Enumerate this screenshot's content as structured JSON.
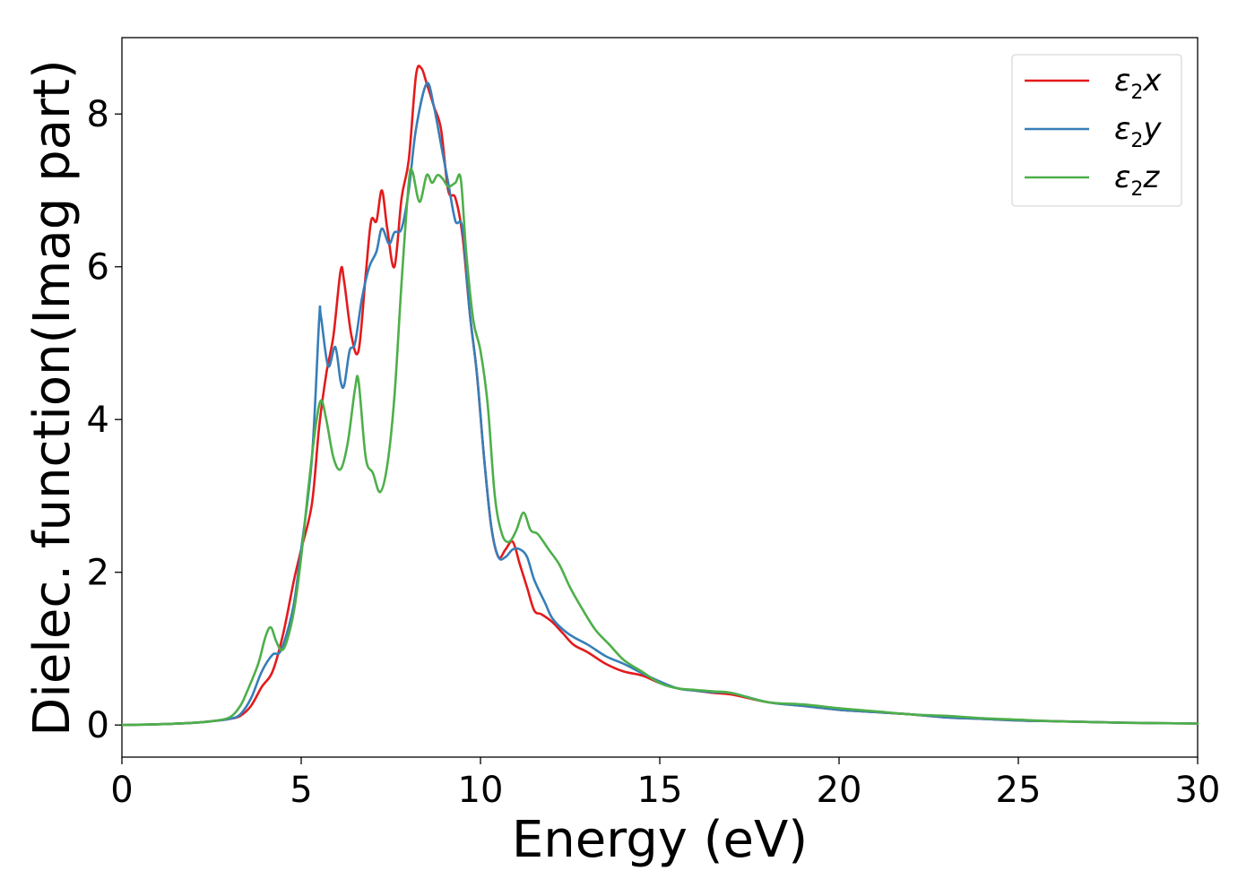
{
  "chart_data": {
    "type": "line",
    "xlabel": "Energy (eV)",
    "ylabel": "Dielec. function(Imag part)",
    "xlim": [
      0,
      30
    ],
    "ylim": [
      -0.42,
      9.0
    ],
    "xticks": [
      0,
      5,
      10,
      15,
      20,
      25,
      30
    ],
    "yticks": [
      0,
      2,
      4,
      6,
      8
    ],
    "grid": false,
    "legend_position": "top-right",
    "series": [
      {
        "name": "ε2x",
        "symbol": "ε",
        "subscript": "2",
        "axis": "x",
        "color": "#e41a1c",
        "x": [
          0,
          1,
          2,
          2.5,
          3,
          3.3,
          3.6,
          3.9,
          4.2,
          4.5,
          4.8,
          5.0,
          5.3,
          5.5,
          5.7,
          5.9,
          6.1,
          6.2,
          6.4,
          6.6,
          6.8,
          6.95,
          7.1,
          7.25,
          7.4,
          7.6,
          7.8,
          8.0,
          8.2,
          8.35,
          8.5,
          8.7,
          8.9,
          9.1,
          9.3,
          9.5,
          9.7,
          9.9,
          10.1,
          10.3,
          10.5,
          10.7,
          10.9,
          11.1,
          11.3,
          11.5,
          11.7,
          12.0,
          12.3,
          12.6,
          13.0,
          13.5,
          14.0,
          14.5,
          15.0,
          15.5,
          16,
          16.5,
          17,
          18,
          19,
          20,
          21,
          22,
          23,
          24,
          25,
          26,
          28,
          30
        ],
        "y": [
          0,
          0.01,
          0.03,
          0.05,
          0.08,
          0.12,
          0.25,
          0.5,
          0.7,
          1.2,
          1.9,
          2.3,
          2.9,
          3.9,
          4.6,
          5.1,
          5.95,
          5.8,
          5.1,
          4.9,
          5.9,
          6.6,
          6.6,
          7.0,
          6.5,
          6.0,
          6.9,
          7.4,
          8.5,
          8.6,
          8.4,
          8.1,
          7.8,
          7.0,
          6.9,
          6.4,
          5.4,
          4.6,
          3.5,
          2.6,
          2.2,
          2.3,
          2.4,
          2.1,
          1.8,
          1.5,
          1.45,
          1.35,
          1.2,
          1.05,
          0.95,
          0.8,
          0.7,
          0.65,
          0.55,
          0.48,
          0.45,
          0.42,
          0.4,
          0.3,
          0.25,
          0.2,
          0.17,
          0.14,
          0.1,
          0.08,
          0.06,
          0.05,
          0.03,
          0.02
        ]
      },
      {
        "name": "ε2y",
        "symbol": "ε",
        "subscript": "2",
        "axis": "y",
        "color": "#377eb8",
        "x": [
          0,
          1,
          2,
          2.5,
          3,
          3.3,
          3.6,
          3.9,
          4.2,
          4.4,
          4.6,
          4.8,
          5.0,
          5.3,
          5.5,
          5.55,
          5.75,
          5.95,
          6.1,
          6.2,
          6.35,
          6.5,
          6.7,
          6.9,
          7.1,
          7.25,
          7.45,
          7.6,
          7.8,
          8.0,
          8.2,
          8.5,
          8.7,
          8.9,
          9.1,
          9.3,
          9.5,
          9.7,
          9.9,
          10.1,
          10.3,
          10.5,
          10.7,
          10.9,
          11.1,
          11.3,
          11.5,
          11.8,
          12.0,
          12.3,
          12.6,
          13.0,
          13.5,
          14.0,
          14.5,
          15.0,
          15.5,
          16,
          16.5,
          17,
          18,
          19,
          20,
          21,
          22,
          23,
          24,
          25,
          26,
          28,
          30
        ],
        "y": [
          0,
          0.01,
          0.03,
          0.05,
          0.08,
          0.14,
          0.35,
          0.7,
          0.92,
          0.95,
          1.2,
          1.6,
          2.3,
          3.5,
          5.3,
          5.35,
          4.7,
          4.95,
          4.5,
          4.45,
          4.9,
          5.0,
          5.6,
          6.0,
          6.2,
          6.5,
          6.3,
          6.45,
          6.5,
          7.0,
          7.8,
          8.4,
          8.1,
          7.6,
          7.1,
          6.6,
          6.5,
          5.4,
          4.6,
          3.5,
          2.6,
          2.2,
          2.2,
          2.3,
          2.3,
          2.2,
          1.9,
          1.6,
          1.4,
          1.25,
          1.15,
          1.05,
          0.9,
          0.8,
          0.68,
          0.57,
          0.48,
          0.45,
          0.43,
          0.42,
          0.3,
          0.25,
          0.2,
          0.17,
          0.14,
          0.1,
          0.08,
          0.06,
          0.05,
          0.03,
          0.02
        ]
      },
      {
        "name": "ε2z",
        "symbol": "ε",
        "subscript": "2",
        "axis": "z",
        "color": "#4daf4a",
        "x": [
          0,
          1,
          2,
          2.5,
          3,
          3.3,
          3.5,
          3.8,
          4.0,
          4.15,
          4.3,
          4.45,
          4.6,
          4.8,
          5.0,
          5.2,
          5.4,
          5.55,
          5.7,
          5.9,
          6.1,
          6.3,
          6.5,
          6.6,
          6.8,
          7.0,
          7.2,
          7.4,
          7.6,
          7.8,
          8.0,
          8.1,
          8.3,
          8.5,
          8.65,
          8.8,
          8.95,
          9.1,
          9.3,
          9.45,
          9.6,
          9.8,
          10.0,
          10.2,
          10.4,
          10.6,
          10.8,
          11.0,
          11.2,
          11.4,
          11.6,
          11.9,
          12.2,
          12.5,
          12.8,
          13.2,
          13.6,
          14.0,
          14.5,
          15.0,
          15.5,
          16,
          16.5,
          17,
          18,
          19,
          20,
          21,
          22,
          23,
          24,
          25,
          26,
          28,
          30
        ],
        "y": [
          0,
          0.01,
          0.03,
          0.05,
          0.1,
          0.25,
          0.45,
          0.8,
          1.15,
          1.28,
          1.1,
          0.98,
          1.1,
          1.5,
          2.2,
          3.1,
          3.9,
          4.25,
          4.0,
          3.5,
          3.35,
          3.7,
          4.4,
          4.5,
          3.5,
          3.3,
          3.05,
          3.4,
          4.3,
          5.8,
          7.1,
          7.25,
          6.85,
          7.2,
          7.1,
          7.2,
          7.15,
          7.05,
          7.1,
          7.15,
          6.2,
          5.3,
          4.9,
          4.2,
          3.0,
          2.5,
          2.4,
          2.55,
          2.78,
          2.55,
          2.5,
          2.3,
          2.1,
          1.8,
          1.55,
          1.25,
          1.05,
          0.85,
          0.7,
          0.55,
          0.48,
          0.46,
          0.44,
          0.42,
          0.3,
          0.27,
          0.22,
          0.18,
          0.14,
          0.12,
          0.09,
          0.07,
          0.05,
          0.03,
          0.02
        ]
      }
    ]
  }
}
